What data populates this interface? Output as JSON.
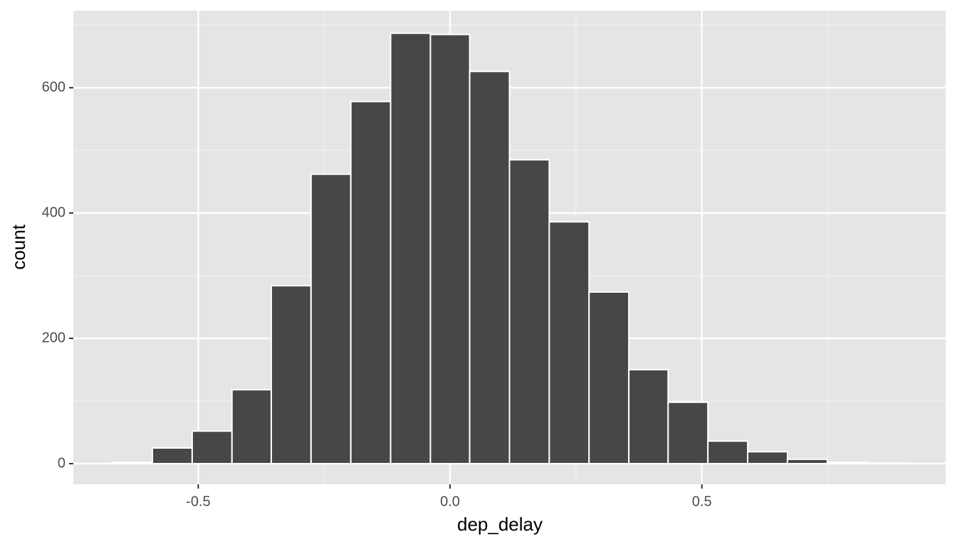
{
  "chart_data": {
    "type": "histogram",
    "x_label": "dep_delay",
    "y_label": "count",
    "bins": [
      -0.67,
      -0.591,
      -0.512,
      -0.433,
      -0.355,
      -0.276,
      -0.197,
      -0.118,
      -0.039,
      0.039,
      0.118,
      0.197,
      0.276,
      0.355,
      0.433,
      0.512,
      0.591,
      0.67,
      0.749,
      0.828,
      0.907
    ],
    "values": [
      2,
      25,
      52,
      118,
      284,
      462,
      578,
      687,
      685,
      626,
      485,
      386,
      274,
      150,
      98,
      36,
      19,
      7,
      2,
      1
    ],
    "color": "#474747",
    "xlim": [
      -0.748,
      0.984
    ],
    "ylim": [
      -33,
      723
    ],
    "xticks": [
      -0.5,
      {
        "value": 0,
        "label": "0.0"
      },
      0.5
    ],
    "yticks": [
      0,
      200,
      400,
      600
    ],
    "grid": true
  }
}
